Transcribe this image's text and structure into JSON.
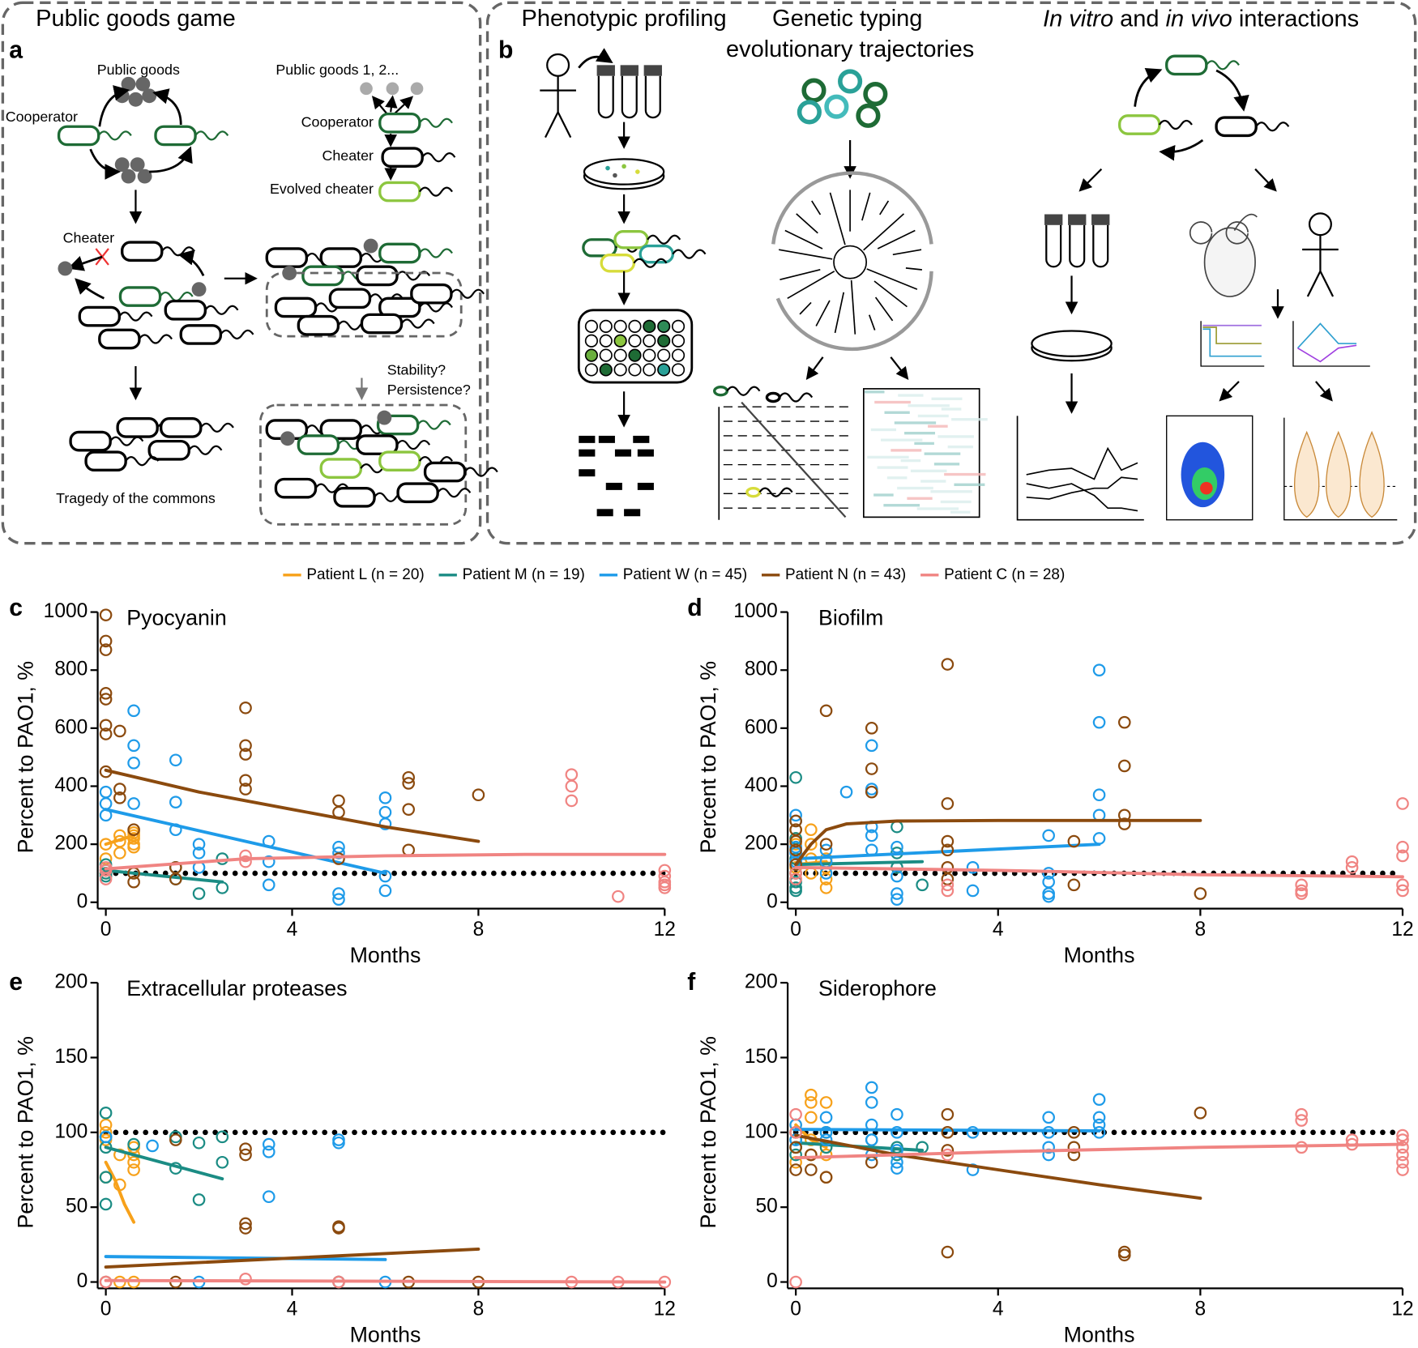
{
  "panel_a": {
    "label": "a",
    "title": "Public goods game",
    "public_goods": "Public goods",
    "cooperator": "Cooperator",
    "cheater": "Cheater",
    "tragedy": "Tragedy of the commons",
    "public_goods_multi": "Public goods 1, 2...",
    "cooperator_2": "Cooperator",
    "cheater_2": "Cheater",
    "evolved_cheater": "Evolved cheater",
    "stability": "Stability?",
    "persistence": "Persistence?"
  },
  "panel_b": {
    "label": "b",
    "phenotypic": "Phenotypic profiling",
    "genetic_1": "Genetic typing",
    "genetic_2": "evolutionary trajectories",
    "interactions": [
      "In vitro",
      " and ",
      "in vivo",
      " interactions"
    ]
  },
  "legend": [
    {
      "name": "Patient L (n = 20)",
      "color": "#f7a11a"
    },
    {
      "name": "Patient M (n = 19)",
      "color": "#1b8c84"
    },
    {
      "name": "Patient W (n = 45)",
      "color": "#1e9be9"
    },
    {
      "name": "Patient N (n = 43)",
      "color": "#8b4a0e"
    },
    {
      "name": "Patient C (n = 28)",
      "color": "#f08482"
    }
  ],
  "chart_data": [
    {
      "type": "scatter",
      "label": "c",
      "title": "Pyocyanin",
      "x_label": "Months",
      "y_label": "Percent to PAO1, %",
      "xlim": [
        0,
        12
      ],
      "xticks": [
        0,
        4,
        8,
        12
      ],
      "ylim": [
        0,
        1000
      ],
      "yticks": [
        0,
        200,
        400,
        600,
        800,
        1000
      ],
      "reference": 100,
      "series": [
        {
          "color": "#f7a11a",
          "x": [
            0,
            0,
            0,
            0.3,
            0.3,
            0.3,
            0.6,
            0.6,
            0.6,
            0.6,
            0.6
          ],
          "values": [
            100,
            150,
            200,
            210,
            230,
            170,
            220,
            240,
            200,
            230,
            190
          ],
          "fit_x": [
            0,
            0.6
          ],
          "fit": [
            200,
            230
          ]
        },
        {
          "color": "#1b8c84",
          "x": [
            0,
            0,
            0,
            0,
            1.5,
            1.5,
            2,
            2.5,
            2.5
          ],
          "values": [
            100,
            90,
            110,
            130,
            120,
            80,
            30,
            150,
            50
          ],
          "fit_x": [
            0,
            2.5
          ],
          "fit": [
            110,
            70
          ]
        },
        {
          "color": "#1e9be9",
          "x": [
            0,
            0,
            0,
            0.6,
            0.6,
            0.6,
            0.6,
            1.5,
            1.5,
            1.5,
            2,
            2,
            2,
            3.5,
            3.5,
            3.5,
            5,
            5,
            5,
            5,
            6,
            6,
            6,
            6,
            6
          ],
          "values": [
            380,
            300,
            340,
            660,
            540,
            480,
            340,
            490,
            345,
            250,
            200,
            170,
            120,
            210,
            140,
            60,
            190,
            170,
            30,
            10,
            360,
            310,
            270,
            90,
            40
          ],
          "fit_x": [
            0,
            6
          ],
          "fit": [
            320,
            100
          ]
        },
        {
          "color": "#8b4a0e",
          "x": [
            0,
            0,
            0,
            0,
            0,
            0,
            0,
            0,
            0.3,
            0.3,
            0.3,
            0.6,
            0.6,
            0.6,
            1.5,
            1.5,
            3,
            3,
            3,
            3,
            3,
            5,
            5,
            5,
            6.5,
            6.5,
            6.5,
            6.5,
            8
          ],
          "values": [
            990,
            900,
            870,
            720,
            700,
            610,
            580,
            450,
            590,
            390,
            360,
            250,
            100,
            70,
            120,
            80,
            670,
            540,
            510,
            420,
            390,
            350,
            310,
            150,
            430,
            410,
            320,
            180,
            370
          ],
          "fit_x": [
            0,
            2,
            4,
            6,
            8
          ],
          "fit": [
            455,
            380,
            320,
            260,
            210
          ]
        },
        {
          "color": "#f08482",
          "x": [
            0,
            0,
            0,
            3,
            3,
            10,
            10,
            10,
            11,
            12,
            12,
            12,
            12,
            12
          ],
          "values": [
            80,
            110,
            120,
            140,
            160,
            440,
            400,
            350,
            20,
            110,
            90,
            70,
            60,
            50
          ],
          "fit_x": [
            0,
            3,
            6,
            9,
            12
          ],
          "fit": [
            115,
            150,
            160,
            165,
            165
          ]
        }
      ]
    },
    {
      "type": "scatter",
      "label": "d",
      "title": "Biofilm",
      "x_label": "Months",
      "y_label": "Percent to PAO1, %",
      "xlim": [
        0,
        12
      ],
      "xticks": [
        0,
        4,
        8,
        12
      ],
      "ylim": [
        0,
        1000
      ],
      "yticks": [
        0,
        200,
        400,
        600,
        800,
        1000
      ],
      "reference": 100,
      "series": [
        {
          "color": "#f7a11a",
          "x": [
            0,
            0,
            0,
            0,
            0,
            0,
            0,
            0.3,
            0.3,
            0.3,
            0.3,
            0.6,
            0.6,
            0.6,
            0.6
          ],
          "values": [
            250,
            220,
            200,
            150,
            120,
            100,
            80,
            250,
            200,
            150,
            100,
            150,
            120,
            80,
            50
          ],
          "fit_x": [
            0,
            0.6
          ],
          "fit": [
            130,
            140
          ]
        },
        {
          "color": "#1b8c84",
          "x": [
            0,
            0,
            0,
            0,
            0,
            0,
            0,
            2,
            2,
            2,
            2.5
          ],
          "values": [
            430,
            220,
            150,
            100,
            70,
            50,
            40,
            260,
            170,
            120,
            60
          ],
          "fit_x": [
            0,
            2.5
          ],
          "fit": [
            130,
            140
          ]
        },
        {
          "color": "#1e9be9",
          "x": [
            0,
            0,
            0,
            0,
            0,
            0.6,
            0.6,
            0.6,
            1,
            1.5,
            1.5,
            1.5,
            1.5,
            1.5,
            2,
            2,
            2,
            2,
            3.5,
            3.5,
            5,
            5,
            5,
            5,
            5,
            6,
            6,
            6,
            6,
            6
          ],
          "values": [
            300,
            280,
            190,
            170,
            140,
            180,
            140,
            100,
            380,
            540,
            390,
            260,
            230,
            180,
            190,
            90,
            30,
            10,
            120,
            40,
            230,
            100,
            70,
            30,
            20,
            800,
            620,
            370,
            300,
            220
          ],
          "fit_x": [
            0,
            6
          ],
          "fit": [
            150,
            200
          ]
        },
        {
          "color": "#8b4a0e",
          "x": [
            0,
            0,
            0,
            0,
            0,
            0.6,
            0.6,
            1.5,
            1.5,
            1.5,
            3,
            3,
            3,
            3,
            3,
            3,
            5.5,
            5.5,
            6.5,
            6.5,
            6.5,
            6.5,
            8
          ],
          "values": [
            280,
            250,
            210,
            180,
            130,
            660,
            200,
            600,
            460,
            380,
            820,
            340,
            210,
            180,
            120,
            80,
            210,
            60,
            620,
            470,
            300,
            270,
            30
          ],
          "fit_x": [
            0,
            0.3,
            0.6,
            1,
            2,
            4,
            8
          ],
          "fit": [
            130,
            200,
            250,
            270,
            280,
            282,
            282
          ]
        },
        {
          "color": "#f08482",
          "x": [
            0,
            0,
            3,
            3,
            10,
            10,
            10,
            11,
            11,
            12,
            12,
            12,
            12,
            12
          ],
          "values": [
            100,
            80,
            60,
            40,
            60,
            40,
            30,
            140,
            120,
            340,
            190,
            160,
            60,
            40
          ],
          "fit_x": [
            0,
            4,
            8,
            12
          ],
          "fit": [
            120,
            110,
            95,
            88
          ]
        }
      ]
    },
    {
      "type": "scatter",
      "label": "e",
      "title": "Extracellular proteases",
      "x_label": "Months",
      "y_label": "Percent to PAO1, %",
      "xlim": [
        0,
        12
      ],
      "xticks": [
        0,
        4,
        8,
        12
      ],
      "ylim": [
        0,
        200
      ],
      "yticks": [
        0,
        50,
        100,
        150,
        200
      ],
      "reference": 100,
      "series": [
        {
          "color": "#f7a11a",
          "x": [
            0,
            0,
            0,
            0,
            0.3,
            0.3,
            0.3,
            0.6,
            0.6,
            0.6,
            0.6,
            0.6
          ],
          "values": [
            105,
            100,
            95,
            70,
            85,
            65,
            0,
            90,
            85,
            80,
            75,
            0
          ],
          "fit_x": [
            0,
            0.2,
            0.4,
            0.6
          ],
          "fit": [
            80,
            68,
            52,
            40
          ]
        },
        {
          "color": "#1b8c84",
          "x": [
            0,
            0,
            0,
            0,
            0,
            0.6,
            1.5,
            1.5,
            2,
            2,
            2.5,
            2.5
          ],
          "values": [
            113,
            97,
            90,
            70,
            52,
            92,
            97,
            76,
            93,
            55,
            97,
            80
          ],
          "fit_x": [
            0,
            2.5
          ],
          "fit": [
            90,
            69
          ]
        },
        {
          "color": "#1e9be9",
          "x": [
            0,
            1,
            2,
            3.5,
            3.5,
            3.5,
            5,
            5,
            5,
            6
          ],
          "values": [
            97,
            91,
            0,
            92,
            87,
            57,
            95,
            93,
            0,
            0
          ],
          "fit_x": [
            0,
            6
          ],
          "fit": [
            17,
            15
          ]
        },
        {
          "color": "#8b4a0e",
          "x": [
            0,
            1.5,
            1.5,
            3,
            3,
            3,
            3,
            5,
            5,
            5,
            6.5,
            8
          ],
          "values": [
            0,
            95,
            0,
            89,
            85,
            39,
            36,
            37,
            36,
            0,
            0,
            0
          ],
          "fit_x": [
            0,
            8
          ],
          "fit": [
            10,
            22
          ]
        },
        {
          "color": "#f08482",
          "x": [
            0,
            3,
            5,
            10,
            11,
            12
          ],
          "values": [
            0,
            2,
            0,
            0,
            0,
            0
          ],
          "fit_x": [
            0,
            12
          ],
          "fit": [
            1,
            0
          ]
        }
      ]
    },
    {
      "type": "scatter",
      "label": "f",
      "title": "Siderophore",
      "x_label": "Months",
      "y_label": "Percent to PAO1, %",
      "xlim": [
        0,
        12
      ],
      "xticks": [
        0,
        4,
        8,
        12
      ],
      "ylim": [
        0,
        200
      ],
      "yticks": [
        0,
        50,
        100,
        150,
        200
      ],
      "reference": 100,
      "series": [
        {
          "color": "#f7a11a",
          "x": [
            0,
            0,
            0,
            0,
            0.3,
            0.3,
            0.3,
            0.3,
            0.3,
            0.6,
            0.6,
            0.6,
            0.6,
            0.6
          ],
          "values": [
            105,
            100,
            90,
            80,
            125,
            120,
            110,
            95,
            85,
            120,
            100,
            90,
            85,
            70
          ],
          "fit_x": [
            0,
            0.3,
            0.6
          ],
          "fit": [
            105,
            95,
            90
          ]
        },
        {
          "color": "#1b8c84",
          "x": [
            0,
            0,
            0,
            0.6,
            0.6,
            1.5,
            2,
            2,
            2.5
          ],
          "values": [
            95,
            90,
            85,
            100,
            90,
            95,
            90,
            85,
            90
          ],
          "fit_x": [
            0,
            2.5
          ],
          "fit": [
            93,
            88
          ]
        },
        {
          "color": "#1e9be9",
          "x": [
            0,
            0,
            0.6,
            0.6,
            0.6,
            1.5,
            1.5,
            1.5,
            1.5,
            1.5,
            2,
            2,
            2,
            2,
            2,
            3.5,
            3.5,
            5,
            5,
            5,
            5,
            6,
            6,
            6,
            6
          ],
          "values": [
            105,
            95,
            110,
            100,
            95,
            130,
            120,
            105,
            95,
            85,
            112,
            100,
            88,
            80,
            76,
            100,
            75,
            110,
            100,
            90,
            85,
            122,
            110,
            105,
            100
          ],
          "fit_x": [
            0,
            6
          ],
          "fit": [
            102,
            101
          ]
        },
        {
          "color": "#8b4a0e",
          "x": [
            0,
            0,
            0,
            0.3,
            0.3,
            0.6,
            1.5,
            3,
            3,
            3,
            3,
            5.5,
            5.5,
            5.5,
            6.5,
            6.5,
            8
          ],
          "values": [
            100,
            90,
            75,
            85,
            75,
            70,
            80,
            112,
            100,
            88,
            20,
            100,
            90,
            85,
            20,
            18,
            113
          ],
          "fit_x": [
            0,
            2,
            4,
            6,
            8
          ],
          "fit": [
            98,
            85,
            75,
            65,
            56
          ]
        },
        {
          "color": "#f08482",
          "x": [
            0,
            0,
            0,
            3,
            10,
            10,
            10,
            11,
            11,
            12,
            12,
            12,
            12,
            12,
            12
          ],
          "values": [
            112,
            100,
            0,
            85,
            112,
            108,
            90,
            95,
            92,
            98,
            95,
            90,
            85,
            80,
            75
          ],
          "fit_x": [
            0,
            4,
            8,
            12
          ],
          "fit": [
            83,
            87,
            90,
            92
          ]
        }
      ]
    }
  ]
}
